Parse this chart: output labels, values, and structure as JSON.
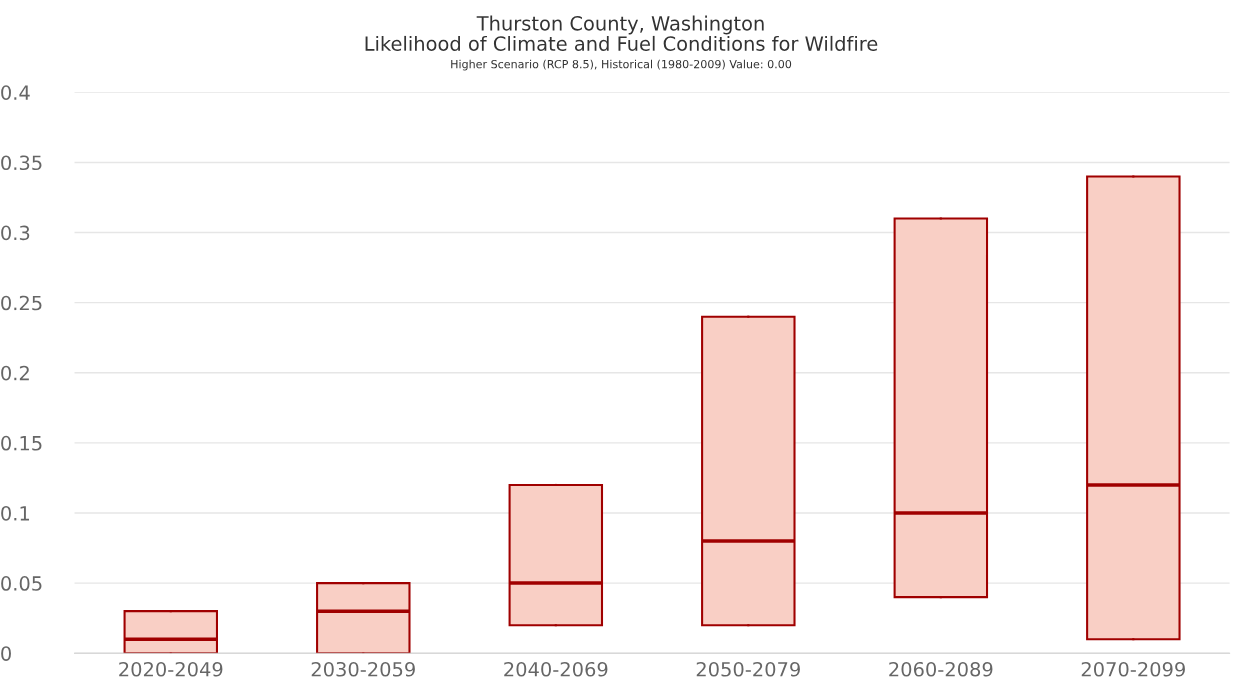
{
  "chart_data": {
    "type": "box",
    "title": "Thurston County, Washington\nLikelihood of Climate and Fuel Conditions for Wildfire",
    "subtitle": "Higher Scenario (RCP 8.5), Historical (1980-2009) Value: 0.00",
    "categories": [
      "2020-2049",
      "2030-2059",
      "2040-2069",
      "2050-2079",
      "2060-2089",
      "2070-2099"
    ],
    "boxes": [
      {
        "low": 0,
        "q1": 0,
        "median": 0.01,
        "q3": 0.03,
        "high": 0.03
      },
      {
        "low": 0,
        "q1": 0,
        "median": 0.03,
        "q3": 0.05,
        "high": 0.05
      },
      {
        "low": 0.02,
        "q1": 0.02,
        "median": 0.05,
        "q3": 0.12,
        "high": 0.12
      },
      {
        "low": 0.02,
        "q1": 0.02,
        "median": 0.08,
        "q3": 0.24,
        "high": 0.24
      },
      {
        "low": 0.04,
        "q1": 0.04,
        "median": 0.1,
        "q3": 0.31,
        "high": 0.31
      },
      {
        "low": 0.01,
        "q1": 0.01,
        "median": 0.12,
        "q3": 0.34,
        "high": 0.34
      }
    ],
    "color": "#f9cfc5",
    "ylim": [
      0,
      0.4
    ],
    "yticks": [
      0,
      0.05,
      0.1,
      0.15,
      0.2,
      0.25,
      0.3,
      0.35,
      0.4
    ],
    "grid": "y",
    "legend": false
  }
}
